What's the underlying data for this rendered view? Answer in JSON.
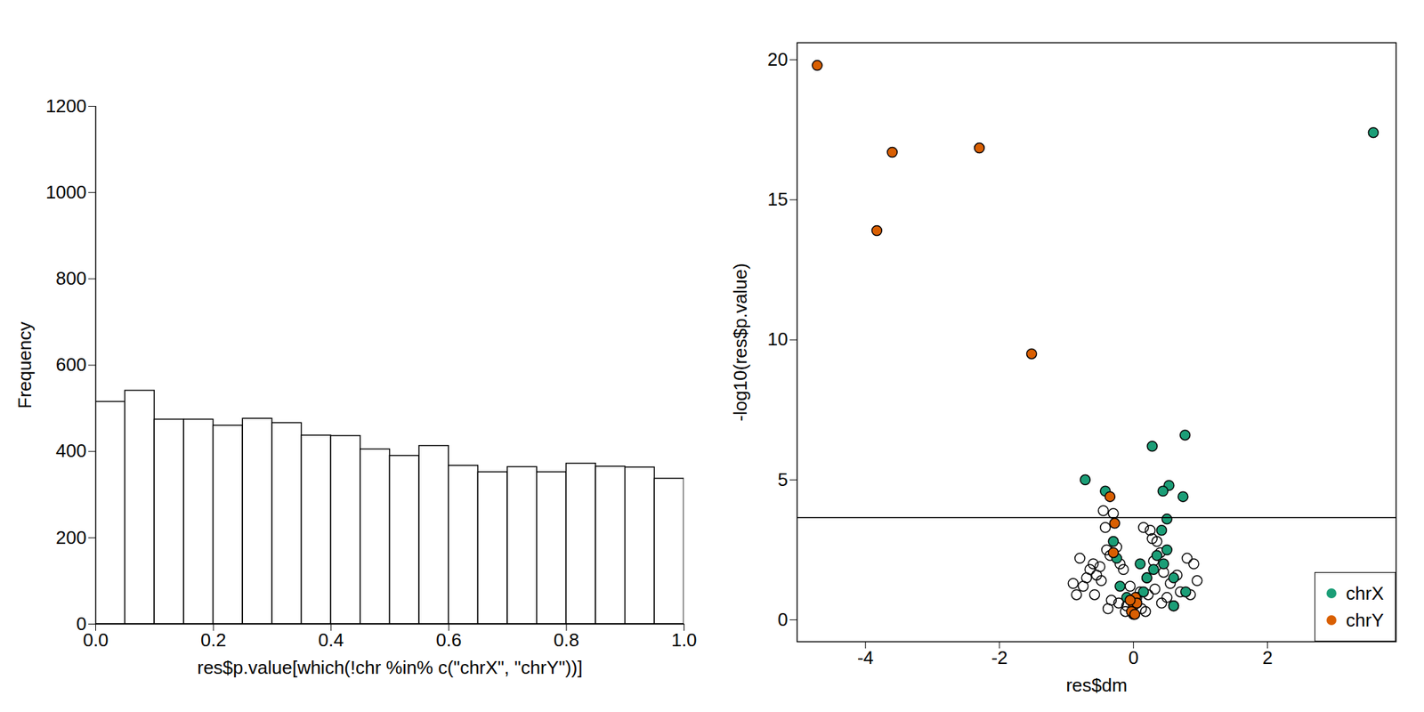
{
  "chart_data": [
    {
      "type": "histogram",
      "xlabel": "res$p.value[which(!chr %in% c(\"chrX\", \"chrY\"))]",
      "ylabel": "Frequency",
      "bins": [
        0,
        0.05,
        0.1,
        0.15,
        0.2,
        0.25,
        0.3,
        0.35,
        0.4,
        0.45,
        0.5,
        0.55,
        0.6,
        0.65,
        0.7,
        0.75,
        0.8,
        0.85,
        0.9,
        0.95,
        1
      ],
      "values": [
        515,
        541,
        474,
        474,
        460,
        476,
        466,
        437,
        436,
        405,
        390,
        413,
        367,
        352,
        364,
        352,
        372,
        365,
        363,
        337
      ],
      "color": "#ffffff",
      "xlim": [
        0,
        1
      ],
      "ylim": [
        0,
        1200
      ],
      "xticks": [
        {
          "value": 0,
          "label": "0.0"
        },
        0.2,
        0.4,
        0.6,
        0.8,
        {
          "value": 1,
          "label": "1.0"
        }
      ],
      "yticks": [
        0,
        200,
        400,
        600,
        800,
        1000,
        1200
      ]
    },
    {
      "type": "scatter",
      "xlabel": "res$dm",
      "ylabel": "-log10(res$p.value)",
      "xlim": [
        -5.02,
        3.92
      ],
      "ylim": [
        -0.78,
        20.61
      ],
      "xticks": [
        -4,
        -2,
        0,
        2
      ],
      "yticks": [
        0,
        5,
        10,
        15,
        20
      ],
      "threshold": 3.65,
      "legend": "bottom-right",
      "color": "#000000",
      "marker": "open",
      "x": [
        -0.45,
        -0.3,
        -0.42,
        0.15,
        0.25,
        0.35,
        -0.8,
        -0.6,
        -0.55,
        -0.9,
        -0.85,
        0.8,
        0.9,
        0.95,
        0.85,
        -0.4,
        -0.2,
        0.1,
        -0.1,
        0.0,
        -0.65,
        -0.7,
        -0.5,
        -0.35,
        -0.25,
        -0.15,
        -0.05,
        0.05,
        0.2,
        0.3,
        0.4,
        0.45,
        0.55,
        0.65,
        0.7,
        -0.75,
        -0.48,
        -0.33,
        -0.22,
        -0.12,
        0.12,
        0.22,
        0.32,
        0.42,
        0.5,
        0.6,
        -0.58,
        -0.38,
        0.18,
        0.28
      ],
      "y": [
        3.9,
        3.8,
        3.3,
        3.3,
        3.2,
        2.8,
        2.2,
        2.0,
        1.6,
        1.3,
        0.9,
        2.2,
        2.0,
        1.4,
        0.9,
        2.5,
        2.0,
        1.0,
        0.5,
        0.2,
        1.8,
        1.5,
        1.9,
        2.3,
        2.6,
        1.8,
        1.2,
        0.8,
        1.5,
        2.1,
        2.4,
        1.7,
        1.3,
        1.6,
        1.0,
        1.2,
        1.4,
        0.7,
        0.6,
        0.3,
        0.4,
        0.9,
        1.1,
        0.6,
        0.8,
        0.5,
        0.9,
        0.4,
        0.3,
        2.9
      ],
      "series": [
        {
          "name": "chrX",
          "color": "#1B9E77",
          "marker": "filled",
          "x": [
            3.58,
            0.28,
            0.77,
            -0.72,
            -0.42,
            0.53,
            0.44,
            0.74,
            0.5,
            0.42,
            -0.3,
            0.5,
            0.6,
            0.78,
            0.6,
            0.2,
            -0.2,
            0.1,
            -0.25,
            0.3,
            0.35,
            0.15,
            -0.1,
            0.05,
            0.45
          ],
          "y": [
            17.4,
            6.2,
            6.6,
            5.0,
            4.6,
            4.8,
            4.6,
            4.4,
            3.6,
            3.2,
            2.8,
            2.5,
            1.5,
            1.0,
            0.5,
            1.5,
            1.2,
            2.0,
            2.2,
            1.8,
            2.3,
            1.0,
            0.8,
            0.6,
            2.0
          ]
        },
        {
          "name": "chrY",
          "color": "#D95F02",
          "marker": "filled",
          "x": [
            -4.72,
            -3.83,
            -3.6,
            -2.3,
            -1.52,
            -0.35,
            -0.28,
            -0.3,
            0.0,
            0.03,
            -0.03,
            0.05,
            -0.05,
            0.02
          ],
          "y": [
            19.8,
            13.9,
            16.7,
            16.85,
            9.5,
            4.4,
            3.45,
            2.4,
            0.5,
            0.8,
            0.3,
            0.6,
            0.7,
            0.2
          ]
        }
      ]
    }
  ]
}
